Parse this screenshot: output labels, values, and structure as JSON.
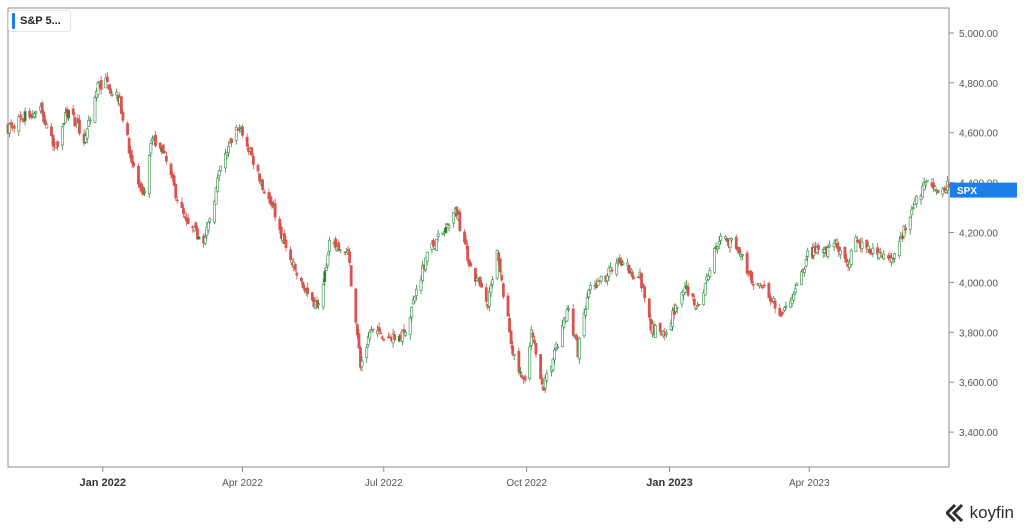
{
  "legend": {
    "label": "S&P 5...",
    "color": "#1a7fe8"
  },
  "brand": {
    "name": "koyfin",
    "icon": "koyfin-logo-icon"
  },
  "colors": {
    "up": "#2e8b3e",
    "down": "#d9534f",
    "up_fill": "#2e7d32",
    "price_tag": "#1a7fe8",
    "axis": "#555555"
  },
  "chart_data": {
    "type": "candlestick",
    "title": "",
    "series_name": "SPX",
    "ylim": [
      3260,
      5100
    ],
    "y_ticks": [
      "5,000.00",
      "4,800.00",
      "4,600.00",
      "4,400.00",
      "4,200.00",
      "4,000.00",
      "3,800.00",
      "3,600.00",
      "3,400.00"
    ],
    "y_tick_values": [
      5000,
      4800,
      4600,
      4400,
      4200,
      4000,
      3800,
      3600,
      3400
    ],
    "x_ticks": [
      {
        "label": "Jan 2022",
        "date": "2022-01-01",
        "bold": true
      },
      {
        "label": "Apr 2022",
        "date": "2022-04-01",
        "bold": false
      },
      {
        "label": "Jul 2022",
        "date": "2022-07-01",
        "bold": false
      },
      {
        "label": "Oct 2022",
        "date": "2022-10-01",
        "bold": false
      },
      {
        "label": "Jan 2023",
        "date": "2023-01-01",
        "bold": true
      },
      {
        "label": "Apr 2023",
        "date": "2023-04-01",
        "bold": false
      }
    ],
    "x_start": "2021-11-01",
    "x_end": "2023-06-30",
    "price_tag": {
      "label": "SPX",
      "value": 4370
    },
    "anchors": [
      [
        "2021-11-01",
        4620
      ],
      [
        "2021-11-10",
        4660
      ],
      [
        "2021-11-22",
        4690
      ],
      [
        "2021-12-01",
        4530
      ],
      [
        "2021-12-10",
        4700
      ],
      [
        "2021-12-20",
        4570
      ],
      [
        "2021-12-29",
        4790
      ],
      [
        "2022-01-04",
        4800
      ],
      [
        "2022-01-12",
        4720
      ],
      [
        "2022-01-20",
        4480
      ],
      [
        "2022-01-27",
        4330
      ],
      [
        "2022-02-02",
        4580
      ],
      [
        "2022-02-10",
        4500
      ],
      [
        "2022-02-18",
        4340
      ],
      [
        "2022-02-24",
        4230
      ],
      [
        "2022-03-08",
        4170
      ],
      [
        "2022-03-18",
        4460
      ],
      [
        "2022-03-29",
        4630
      ],
      [
        "2022-04-08",
        4490
      ],
      [
        "2022-04-14",
        4390
      ],
      [
        "2022-04-22",
        4270
      ],
      [
        "2022-04-29",
        4130
      ],
      [
        "2022-05-09",
        3990
      ],
      [
        "2022-05-20",
        3900
      ],
      [
        "2022-05-27",
        4150
      ],
      [
        "2022-06-08",
        4120
      ],
      [
        "2022-06-16",
        3670
      ],
      [
        "2022-06-23",
        3800
      ],
      [
        "2022-06-30",
        3780
      ],
      [
        "2022-07-14",
        3790
      ],
      [
        "2022-07-29",
        4120
      ],
      [
        "2022-08-10",
        4210
      ],
      [
        "2022-08-16",
        4300
      ],
      [
        "2022-08-26",
        4060
      ],
      [
        "2022-09-06",
        3910
      ],
      [
        "2022-09-12",
        4110
      ],
      [
        "2022-09-23",
        3690
      ],
      [
        "2022-09-30",
        3590
      ],
      [
        "2022-10-04",
        3790
      ],
      [
        "2022-10-12",
        3580
      ],
      [
        "2022-10-21",
        3750
      ],
      [
        "2022-10-28",
        3900
      ],
      [
        "2022-11-03",
        3720
      ],
      [
        "2022-11-10",
        3960
      ],
      [
        "2022-11-30",
        4080
      ],
      [
        "2022-12-13",
        4020
      ],
      [
        "2022-12-20",
        3820
      ],
      [
        "2022-12-28",
        3790
      ],
      [
        "2023-01-12",
        3980
      ],
      [
        "2023-01-19",
        3900
      ],
      [
        "2023-02-02",
        4180
      ],
      [
        "2023-02-15",
        4140
      ],
      [
        "2023-02-24",
        3970
      ],
      [
        "2023-03-02",
        3980
      ],
      [
        "2023-03-09",
        3920
      ],
      [
        "2023-03-13",
        3850
      ],
      [
        "2023-03-22",
        3940
      ],
      [
        "2023-03-31",
        4110
      ],
      [
        "2023-04-18",
        4150
      ],
      [
        "2023-04-25",
        4070
      ],
      [
        "2023-05-01",
        4160
      ],
      [
        "2023-05-25",
        4100
      ],
      [
        "2023-06-05",
        4280
      ],
      [
        "2023-06-16",
        4410
      ],
      [
        "2023-06-23",
        4350
      ],
      [
        "2023-06-30",
        4390
      ]
    ]
  }
}
